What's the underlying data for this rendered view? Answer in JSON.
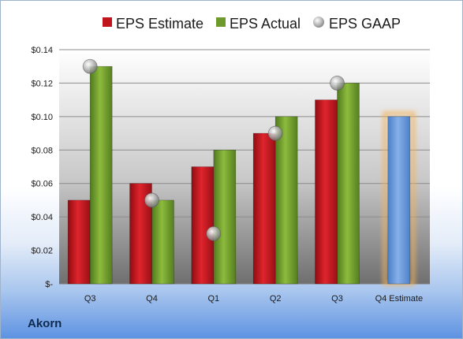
{
  "company": "Akorn",
  "chart_data": {
    "type": "bar",
    "categories": [
      "Q3",
      "Q4",
      "Q1",
      "Q2",
      "Q3",
      "Q4 Estimate"
    ],
    "ytick_labels": [
      "$-",
      "$0.02",
      "$0.04",
      "$0.06",
      "$0.08",
      "$0.10",
      "$0.12",
      "$0.14"
    ],
    "ylim": [
      0,
      0.14
    ],
    "series": [
      {
        "name": "EPS Estimate",
        "type": "bar",
        "color": "#c0151d",
        "values": [
          0.05,
          0.06,
          0.07,
          0.09,
          0.11,
          null
        ]
      },
      {
        "name": "EPS Actual",
        "type": "bar",
        "color": "#6d9a2a",
        "values": [
          0.13,
          0.05,
          0.08,
          0.1,
          0.12,
          null
        ]
      },
      {
        "name": "EPS GAAP",
        "type": "scatter",
        "color": "#a8a8a8",
        "values": [
          0.13,
          0.05,
          0.03,
          0.09,
          0.12,
          null
        ]
      },
      {
        "name": "",
        "type": "bar",
        "color": "#5d8fd2",
        "highlight": "#f3b25a",
        "values": [
          null,
          null,
          null,
          null,
          null,
          0.1
        ]
      }
    ],
    "legend": "top",
    "grid": true
  }
}
